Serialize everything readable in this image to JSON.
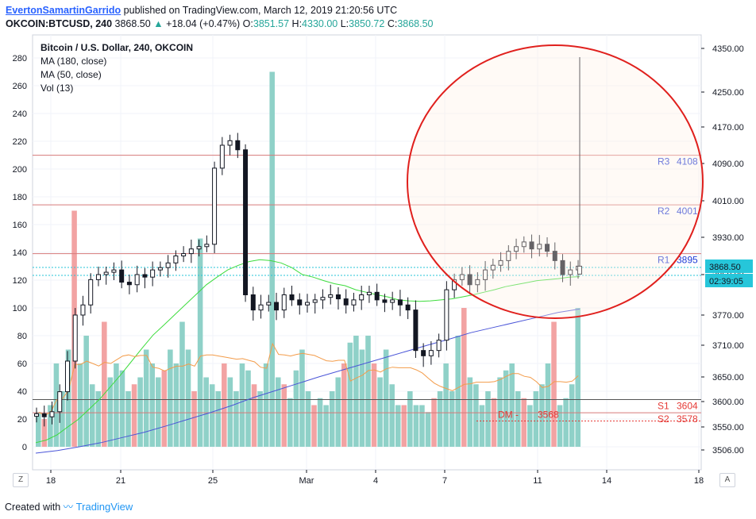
{
  "header": {
    "author": "EvertonSamartinGarrido",
    "published_text": "published on TradingView.com, March 12, 2019 21:20:56 UTC",
    "symbol": "OKCOIN:BTCUSD, 240",
    "last": "3868.50",
    "change": "+18.04 (+0.47%)",
    "o_label": "O:",
    "o_value": "3851.57",
    "h_label": "H:",
    "h_value": "4330.00",
    "l_label": "L:",
    "l_value": "3850.72",
    "c_label": "C:",
    "c_value": "3868.50"
  },
  "legend": {
    "title": "Bitcoin / U.S. Dollar, 240, OKCOIN",
    "ma180": "MA (180, close)",
    "ma50": "MA (50, close)",
    "vol": "Vol (13)"
  },
  "footer": {
    "created_with": "Created with",
    "brand": "TradingView"
  },
  "scale_buttons": {
    "left": "Z",
    "right": "A"
  },
  "price_badge": {
    "value": "3868.50",
    "countdown": "02:39:05",
    "color": "#26c6da"
  },
  "chart_data": {
    "type": "candlestick",
    "price_axis": {
      "side": "right",
      "range": [
        3480,
        4370
      ],
      "ticks": [
        "4350.00",
        "4250.00",
        "4170.00",
        "4090.00",
        "4010.00",
        "3930.00",
        "3850.00",
        "3770.00",
        "3710.00",
        "3650.00",
        "3600.00",
        "3550.00",
        "3506.00"
      ]
    },
    "volume_axis": {
      "side": "left",
      "range": [
        -10,
        290
      ],
      "ticks": [
        0,
        20,
        40,
        60,
        80,
        100,
        120,
        140,
        160,
        180,
        200,
        220,
        240,
        260,
        280
      ]
    },
    "time_axis": {
      "ticks": [
        "18",
        "21",
        "25",
        "Mar",
        "4",
        "7",
        "11",
        "14",
        "18"
      ]
    },
    "levels": [
      {
        "label": "R3",
        "value": "4108",
        "price": 4108,
        "color": "#1f3bd6",
        "line": "#d67a7a"
      },
      {
        "label": "R2",
        "value": "4001",
        "price": 4001,
        "color": "#1f3bd6",
        "line": "#d67a7a"
      },
      {
        "label": "R1",
        "value": "3895",
        "price": 3895,
        "color": "#1f3bd6",
        "line": "#d67a7a"
      },
      {
        "label": "S1",
        "value": "3604",
        "price": 3604,
        "color": "#e53935",
        "line": "#555555"
      },
      {
        "label": "S2",
        "value": "3578",
        "price": 3578,
        "color": "#e53935",
        "line": "#d67a7a"
      }
    ],
    "dm": {
      "label": "DM",
      "value": "3568",
      "price": 3568,
      "color": "#e53935"
    },
    "close_series": [
      3576,
      3570,
      3580,
      3620,
      3680,
      3770,
      3790,
      3840,
      3850,
      3855,
      3860,
      3835,
      3830,
      3850,
      3845,
      3860,
      3865,
      3875,
      3890,
      3895,
      3905,
      3910,
      3915,
      4080,
      4130,
      4140,
      4120,
      3810,
      3780,
      3790,
      3795,
      3780,
      3810,
      3800,
      3790,
      3795,
      3800,
      3805,
      3810,
      3802,
      3790,
      3800,
      3810,
      3815,
      3800,
      3795,
      3800,
      3790,
      3780,
      3700,
      3690,
      3700,
      3720,
      3820,
      3840,
      3850,
      3830,
      3840,
      3860,
      3870,
      3880,
      3900,
      3910,
      3920,
      3905,
      3915,
      3900,
      3880,
      3850,
      3860,
      3868
    ],
    "ma50_series": [
      3520,
      3525,
      3535,
      3550,
      3565,
      3585,
      3605,
      3630,
      3655,
      3680,
      3705,
      3730,
      3750,
      3770,
      3790,
      3810,
      3830,
      3845,
      3860,
      3870,
      3878,
      3882,
      3880,
      3875,
      3865,
      3850,
      3845,
      3838,
      3832,
      3828,
      3820,
      3815,
      3810,
      3806,
      3800,
      3798,
      3797,
      3798,
      3800,
      3802,
      3806,
      3810,
      3815,
      3820,
      3826,
      3830,
      3834,
      3838,
      3840,
      3842,
      3845,
      3846
    ],
    "ma180_series": [
      3500,
      3505,
      3512,
      3520,
      3530,
      3540,
      3552,
      3565,
      3578,
      3592,
      3608,
      3622,
      3636,
      3650,
      3662,
      3674,
      3686,
      3698,
      3710,
      3722,
      3735,
      3745,
      3755,
      3765,
      3775,
      3782
    ],
    "volume_series": [
      25,
      20,
      30,
      60,
      40,
      70,
      170,
      60,
      80,
      45,
      40,
      90,
      50,
      60,
      55,
      40,
      45,
      50,
      70,
      60,
      50,
      55,
      70,
      60,
      90,
      70,
      40,
      150,
      50,
      45,
      40,
      60,
      50,
      40,
      60,
      55,
      45,
      40,
      60,
      270,
      50,
      45,
      35,
      55,
      70,
      40,
      30,
      35,
      30,
      40,
      50,
      60,
      75,
      80,
      70,
      80,
      60,
      50,
      70,
      45,
      30,
      30,
      40,
      30,
      30,
      25,
      35,
      40,
      60,
      40,
      80,
      100,
      50,
      45,
      30,
      40,
      35,
      50,
      55,
      60,
      40,
      35,
      30,
      40,
      45,
      60,
      90,
      30,
      35,
      45,
      100
    ]
  }
}
